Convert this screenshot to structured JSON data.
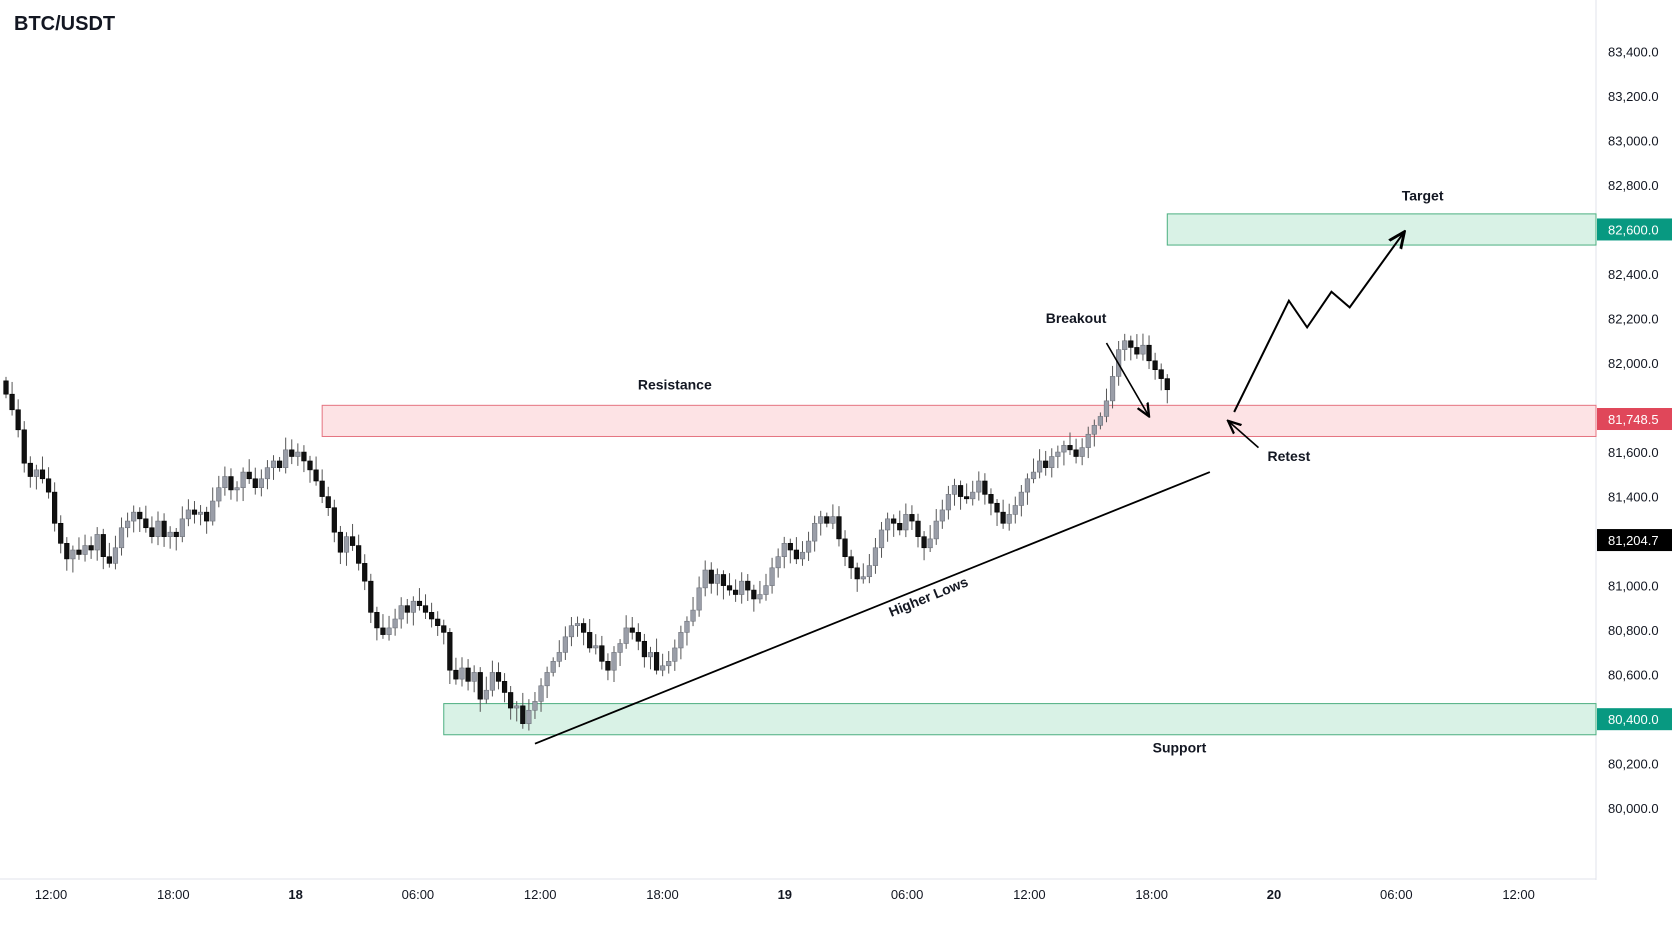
{
  "chart_data": {
    "type": "candlestick",
    "title": "BTC/USDT",
    "y_axis": {
      "ticks": [
        "83,400.0",
        "83,200.0",
        "83,000.0",
        "82,800.0",
        "82,400.0",
        "82,200.0",
        "82,000.0",
        "81,600.0",
        "81,400.0",
        "81,000.0",
        "80,800.0",
        "80,600.0",
        "80,200.0",
        "80,000.0"
      ],
      "tick_values": [
        83400,
        83200,
        83000,
        82800,
        82400,
        82200,
        82000,
        81600,
        81400,
        81000,
        80800,
        80600,
        80200,
        80000
      ],
      "ylim": [
        79700,
        83550
      ],
      "position": "right"
    },
    "x_axis": {
      "ticks": [
        {
          "label": "12:00",
          "bold": false
        },
        {
          "label": "18:00",
          "bold": false
        },
        {
          "label": "18",
          "bold": true
        },
        {
          "label": "06:00",
          "bold": false
        },
        {
          "label": "12:00",
          "bold": false
        },
        {
          "label": "18:00",
          "bold": false
        },
        {
          "label": "19",
          "bold": true
        },
        {
          "label": "06:00",
          "bold": false
        },
        {
          "label": "12:00",
          "bold": false
        },
        {
          "label": "18:00",
          "bold": false
        },
        {
          "label": "20",
          "bold": true
        },
        {
          "label": "06:00",
          "bold": false
        },
        {
          "label": "12:00",
          "bold": false
        }
      ],
      "hours_per_tick": 6,
      "candle_interval_minutes": 45
    },
    "price_tags": [
      {
        "label": "82,600.0",
        "value": 82600,
        "color": "#089981"
      },
      {
        "label": "81,748.5",
        "value": 81748.5,
        "color": "#e0475a"
      },
      {
        "label": "81,204.7",
        "value": 81204.7,
        "color": "#000000"
      },
      {
        "label": "80,400.0",
        "value": 80400,
        "color": "#089981"
      }
    ],
    "zones": [
      {
        "name": "Resistance",
        "low": 81670,
        "high": 81810,
        "start_index": 52,
        "fill": "#fde3e5",
        "stroke": "#e57380"
      },
      {
        "name": "Target",
        "low": 82530,
        "high": 82670,
        "start_index": 191,
        "fill": "#d9f2e6",
        "stroke": "#4caf80"
      },
      {
        "name": "Support",
        "low": 80330,
        "high": 80470,
        "start_index": 72,
        "fill": "#d9f2e6",
        "stroke": "#4caf80"
      }
    ],
    "trendline": {
      "name": "Higher Lows",
      "from": {
        "index": 87,
        "price": 80290
      },
      "to": {
        "index": 198,
        "price": 81510
      }
    },
    "projection": [
      {
        "index": 202,
        "price": 81780
      },
      {
        "index": 211,
        "price": 82280
      },
      {
        "index": 214,
        "price": 82160
      },
      {
        "index": 218,
        "price": 82320
      },
      {
        "index": 221,
        "price": 82250
      },
      {
        "index": 230,
        "price": 82590
      }
    ],
    "annotations": [
      {
        "text": "Resistance",
        "index": 110,
        "price": 81880
      },
      {
        "text": "Target",
        "index": 233,
        "price": 82730
      },
      {
        "text": "Breakout",
        "index": 176,
        "price": 82180
      },
      {
        "text": "Retest",
        "index": 211,
        "price": 81560
      },
      {
        "text": "Support",
        "index": 193,
        "price": 80250
      },
      {
        "text": "Higher Lows",
        "index": 152,
        "price": 80930,
        "angle": -22
      }
    ],
    "arrows": [
      {
        "name": "breakout-arrow",
        "from": {
          "index": 181,
          "price": 82090
        },
        "to": {
          "index": 188,
          "price": 81760
        }
      },
      {
        "name": "retest-arrow",
        "from": {
          "index": 206,
          "price": 81620
        },
        "to": {
          "index": 201,
          "price": 81740
        }
      }
    ],
    "colors": {
      "up": "#9a9ea8",
      "down": "#111111",
      "wick": "#555555"
    },
    "candles": {
      "first_open": 81920,
      "closes": [
        81860,
        81790,
        81700,
        81550,
        81490,
        81520,
        81480,
        81420,
        81280,
        81190,
        81120,
        81160,
        81140,
        81180,
        81160,
        81230,
        81130,
        81100,
        81170,
        81260,
        81290,
        81330,
        81300,
        81260,
        81220,
        81290,
        81220,
        81240,
        81220,
        81300,
        81340,
        81320,
        81330,
        81290,
        81380,
        81440,
        81490,
        81430,
        81440,
        81510,
        81480,
        81440,
        81480,
        81530,
        81560,
        81530,
        81610,
        81580,
        81600,
        81560,
        81520,
        81470,
        81400,
        81350,
        81240,
        81150,
        81220,
        81180,
        81100,
        81020,
        80880,
        80810,
        80780,
        80810,
        80850,
        80910,
        80880,
        80930,
        80910,
        80880,
        80850,
        80820,
        80790,
        80620,
        80580,
        80630,
        80570,
        80610,
        80490,
        80530,
        80610,
        80570,
        80520,
        80450,
        80460,
        80380,
        80440,
        80480,
        80550,
        80610,
        80660,
        80700,
        80770,
        80820,
        80830,
        80790,
        80720,
        80730,
        80660,
        80620,
        80700,
        80740,
        80810,
        80790,
        80750,
        80680,
        80700,
        80620,
        80640,
        80660,
        80720,
        80790,
        80840,
        80890,
        80990,
        81070,
        81010,
        81050,
        81000,
        80980,
        80960,
        81020,
        80980,
        80940,
        80960,
        81000,
        81080,
        81130,
        81190,
        81160,
        81120,
        81150,
        81200,
        81280,
        81310,
        81280,
        81310,
        81210,
        81130,
        81080,
        81030,
        81040,
        81090,
        81170,
        81250,
        81300,
        81280,
        81250,
        81320,
        81290,
        81220,
        81170,
        81210,
        81290,
        81340,
        81410,
        81450,
        81400,
        81390,
        81420,
        81470,
        81410,
        81370,
        81330,
        81280,
        81320,
        81360,
        81420,
        81480,
        81510,
        81560,
        81530,
        81580,
        81600,
        81630,
        81610,
        81580,
        81620,
        81680,
        81720,
        81760,
        81830,
        81940,
        82060,
        82100,
        82070,
        82040,
        82080,
        82010,
        81970,
        81930,
        81880
      ]
    }
  }
}
